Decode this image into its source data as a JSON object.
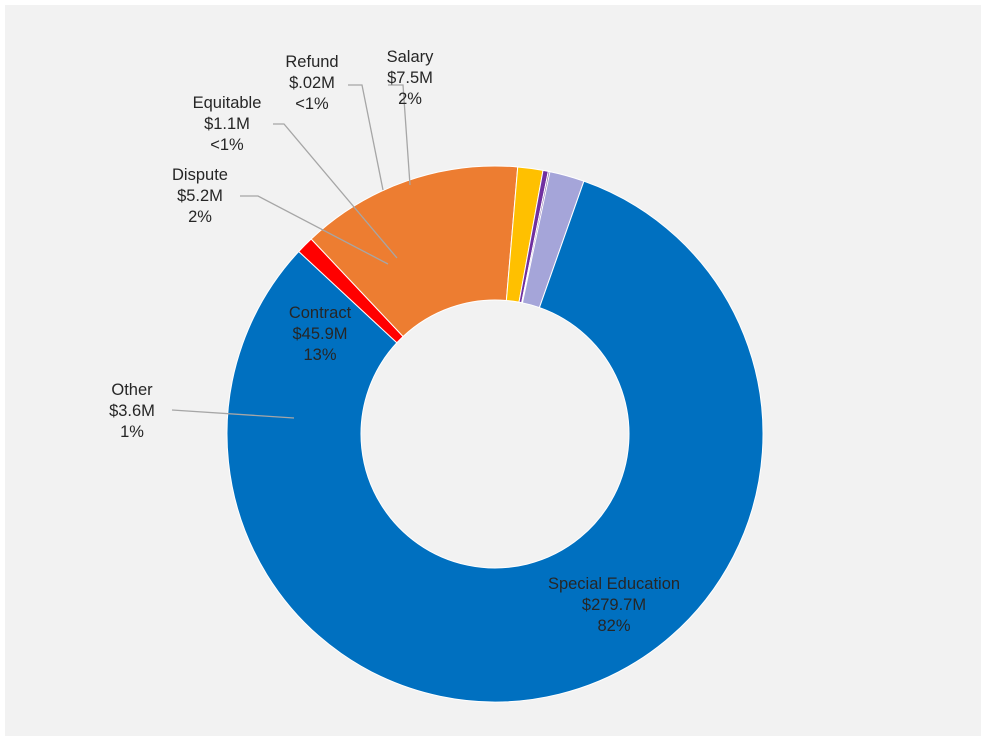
{
  "chart_data": {
    "type": "pie",
    "title": "",
    "donut": true,
    "legend": "none",
    "slices": [
      {
        "name": "Salary",
        "value_label": "$7.5M",
        "pct_label": "2%",
        "value": 7.5,
        "color": "#a5a5d9"
      },
      {
        "name": "Special Education",
        "value_label": "$279.7M",
        "pct_label": "82%",
        "value": 279.7,
        "color": "#0070c0"
      },
      {
        "name": "Other",
        "value_label": "$3.6M",
        "pct_label": "1%",
        "value": 3.6,
        "color": "#ff0000"
      },
      {
        "name": "Contract",
        "value_label": "$45.9M",
        "pct_label": "13%",
        "value": 45.9,
        "color": "#ed7d31"
      },
      {
        "name": "Dispute",
        "value_label": "$5.2M",
        "pct_label": "2%",
        "value": 5.2,
        "color": "#ffc000"
      },
      {
        "name": "Equitable",
        "value_label": "$1.1M",
        "pct_label": "<1%",
        "value": 1.1,
        "color": "#7030a0"
      },
      {
        "name": "Refund",
        "value_label": "$.02M",
        "pct_label": "<1%",
        "value": 0.02,
        "color": "#8064a2"
      }
    ]
  }
}
